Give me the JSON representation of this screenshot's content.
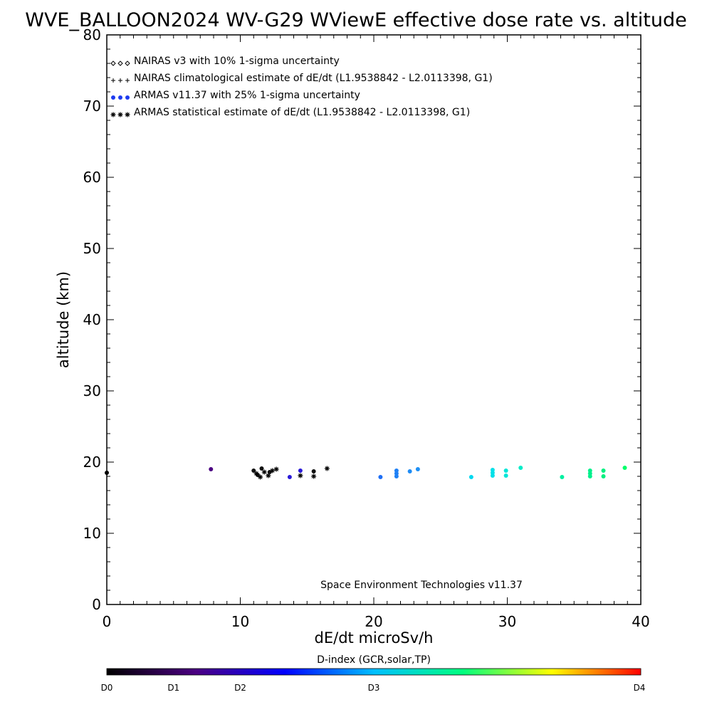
{
  "chart_data": {
    "type": "scatter",
    "title": "WVE_BALLOON2024 WV-G29 WViewE effective dose rate vs. altitude",
    "xlabel": "dE/dt microSv/h",
    "ylabel": "altitude (km)",
    "xlim": [
      0,
      40
    ],
    "ylim": [
      0,
      80
    ],
    "x_ticks": [
      0,
      10,
      20,
      30,
      40
    ],
    "y_ticks": [
      0,
      10,
      20,
      30,
      40,
      50,
      60,
      70,
      80
    ],
    "grid": false,
    "legend_placement": "top-left",
    "legend": [
      {
        "symbol": "diamond",
        "label": "NAIRAS v3 with 10% 1-sigma uncertainty"
      },
      {
        "symbol": "plus",
        "label": "NAIRAS climatological estimate of dE/dt (L1.9538842 - L2.0113398, G1)"
      },
      {
        "symbol": "dot",
        "label": "ARMAS v11.37 with 25% 1-sigma uncertainty"
      },
      {
        "symbol": "asterisk",
        "label": "ARMAS statistical estimate of dE/dt (L1.9538842 - L2.0113398, G1)"
      }
    ],
    "annotation": "Space Environment Technologies v11.37",
    "colorbar": {
      "title": "D-index (GCR,solar,TP)",
      "labels": [
        {
          "text": "D0",
          "frac": 0.0
        },
        {
          "text": "D1",
          "frac": 0.125
        },
        {
          "text": "D2",
          "frac": 0.25
        },
        {
          "text": "D3",
          "frac": 0.5
        },
        {
          "text": "D4",
          "frac": 1.0
        }
      ],
      "stops": [
        "#000000",
        "#4b0082",
        "#0000ff",
        "#00bfff",
        "#00ff7f",
        "#ffff00",
        "#ff0000"
      ]
    },
    "series": [
      {
        "symbol": "dot",
        "points": [
          {
            "x": 0.0,
            "y": 18.5,
            "color": "#000000"
          },
          {
            "x": 7.8,
            "y": 19.0,
            "color": "#4b0082"
          },
          {
            "x": 11.0,
            "y": 18.8,
            "color": "#111111"
          },
          {
            "x": 11.3,
            "y": 18.2,
            "color": "#111111"
          },
          {
            "x": 11.6,
            "y": 19.1,
            "color": "#111111"
          },
          {
            "x": 12.2,
            "y": 18.6,
            "color": "#111111"
          },
          {
            "x": 13.7,
            "y": 17.9,
            "color": "#2a1ad8"
          },
          {
            "x": 14.5,
            "y": 18.8,
            "color": "#2a1ad8"
          },
          {
            "x": 15.5,
            "y": 18.7,
            "color": "#111111"
          },
          {
            "x": 20.5,
            "y": 17.9,
            "color": "#1e6ff5"
          },
          {
            "x": 21.7,
            "y": 18.0,
            "color": "#1e80f5"
          },
          {
            "x": 21.7,
            "y": 18.4,
            "color": "#1e80f5"
          },
          {
            "x": 21.7,
            "y": 18.8,
            "color": "#1e80f5"
          },
          {
            "x": 22.7,
            "y": 18.7,
            "color": "#1e8cf5"
          },
          {
            "x": 23.3,
            "y": 19.0,
            "color": "#1e90f5"
          },
          {
            "x": 27.3,
            "y": 17.9,
            "color": "#00d8f0"
          },
          {
            "x": 28.9,
            "y": 18.1,
            "color": "#00e0e8"
          },
          {
            "x": 28.9,
            "y": 18.5,
            "color": "#00e0e8"
          },
          {
            "x": 28.9,
            "y": 18.9,
            "color": "#00e0e8"
          },
          {
            "x": 29.9,
            "y": 18.1,
            "color": "#00e6d8"
          },
          {
            "x": 29.9,
            "y": 18.8,
            "color": "#00e6d8"
          },
          {
            "x": 31.0,
            "y": 19.2,
            "color": "#00ecc8"
          },
          {
            "x": 34.1,
            "y": 17.9,
            "color": "#00f0a0"
          },
          {
            "x": 36.2,
            "y": 18.0,
            "color": "#00f08c"
          },
          {
            "x": 36.2,
            "y": 18.4,
            "color": "#00f08c"
          },
          {
            "x": 36.2,
            "y": 18.8,
            "color": "#00f08c"
          },
          {
            "x": 37.2,
            "y": 18.0,
            "color": "#00f080"
          },
          {
            "x": 37.2,
            "y": 18.8,
            "color": "#00f080"
          },
          {
            "x": 38.8,
            "y": 19.2,
            "color": "#00ff6a"
          }
        ]
      },
      {
        "symbol": "asterisk",
        "points": [
          {
            "x": 11.2,
            "y": 18.4
          },
          {
            "x": 11.5,
            "y": 17.9
          },
          {
            "x": 11.8,
            "y": 18.6
          },
          {
            "x": 12.1,
            "y": 18.1
          },
          {
            "x": 12.4,
            "y": 18.8
          },
          {
            "x": 12.7,
            "y": 19.0
          },
          {
            "x": 14.5,
            "y": 18.1
          },
          {
            "x": 15.5,
            "y": 18.0
          },
          {
            "x": 16.5,
            "y": 19.1
          }
        ]
      }
    ]
  }
}
